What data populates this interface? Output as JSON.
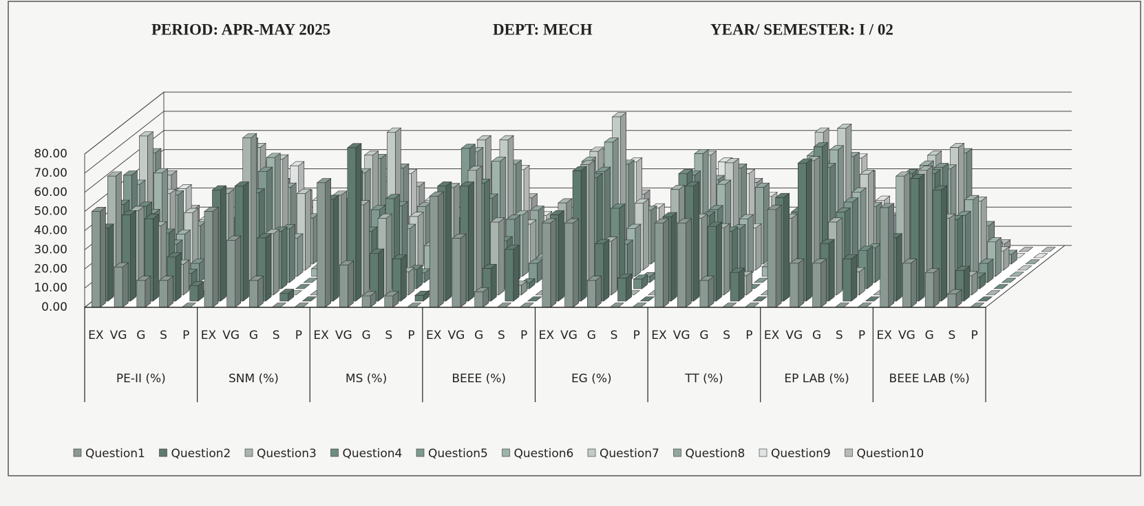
{
  "chart_data": {
    "type": "bar3d",
    "title": "PERIOD: APR-MAY 2025",
    "subtitle": "DEPT: MECH",
    "caption": "YEAR/ SEMESTER: I / 02",
    "groups": [
      {
        "name": "PE-II (%)",
        "categories": [
          "EX",
          "VG",
          "G",
          "S",
          "P"
        ]
      },
      {
        "name": "SNM (%)",
        "categories": [
          "EX",
          "VG",
          "G",
          "S",
          "P"
        ]
      },
      {
        "name": "MS (%)",
        "categories": [
          "EX",
          "VG",
          "G",
          "S",
          "P"
        ]
      },
      {
        "name": "BEEE (%)",
        "categories": [
          "EX",
          "VG",
          "G",
          "S",
          "P"
        ]
      },
      {
        "name": "EG (%)",
        "categories": [
          "EX",
          "VG",
          "G",
          "S",
          "P"
        ]
      },
      {
        "name": "TT (%)",
        "categories": [
          "EX",
          "VG",
          "G",
          "S",
          "P"
        ]
      },
      {
        "name": "EP LAB (%)",
        "categories": [
          "EX",
          "VG",
          "G",
          "S",
          "P"
        ]
      },
      {
        "name": "BEEE LAB (%)",
        "categories": [
          "EX",
          "VG",
          "G",
          "S",
          "P"
        ]
      }
    ],
    "series": [
      {
        "name": "Question1",
        "color": "#8a9a93",
        "values": [
          [
            50,
            21,
            14,
            14,
            0
          ],
          [
            50,
            35,
            14,
            0,
            0
          ],
          [
            65,
            22,
            6,
            6,
            0
          ],
          [
            58,
            36,
            8,
            0,
            0
          ],
          [
            44,
            44,
            14,
            0,
            0
          ],
          [
            44,
            44,
            14,
            0,
            0
          ],
          [
            51,
            23,
            23,
            0,
            0
          ],
          [
            52,
            23,
            18,
            7,
            0
          ]
        ]
      },
      {
        "name": "Question2",
        "color": "#5f7a6e",
        "values": [
          [
            38,
            45,
            43,
            23,
            8
          ],
          [
            58,
            60,
            33,
            4,
            0
          ],
          [
            53,
            80,
            25,
            22,
            3
          ],
          [
            60,
            60,
            17,
            27,
            0
          ],
          [
            45,
            68,
            30,
            12,
            0
          ],
          [
            44,
            60,
            39,
            15,
            0
          ],
          [
            54,
            72,
            30,
            22,
            0
          ],
          [
            33,
            64,
            58,
            16,
            0
          ]
        ]
      },
      {
        "name": "Question3",
        "color": "#a8b5ae",
        "values": [
          [
            62,
            44,
            36,
            16,
            0
          ],
          [
            53,
            82,
            32,
            0,
            0
          ],
          [
            52,
            47,
            40,
            12,
            0
          ],
          [
            56,
            65,
            38,
            5,
            0
          ],
          [
            48,
            68,
            28,
            0,
            0
          ],
          [
            55,
            40,
            35,
            10,
            0
          ],
          [
            40,
            70,
            38,
            12,
            0
          ],
          [
            62,
            65,
            40,
            10,
            0
          ]
        ]
      },
      {
        "name": "Question4",
        "color": "#6f8c80",
        "values": [
          [
            44,
            43,
            29,
            8,
            0
          ],
          [
            35,
            50,
            30,
            0,
            0
          ],
          [
            45,
            30,
            47,
            10,
            0
          ],
          [
            35,
            55,
            25,
            3,
            0
          ],
          [
            35,
            58,
            42,
            5,
            0
          ],
          [
            60,
            38,
            30,
            0,
            0
          ],
          [
            40,
            74,
            40,
            20,
            0
          ],
          [
            60,
            60,
            36,
            6,
            0
          ]
        ]
      },
      {
        "name": "Question5",
        "color": "#7f9990",
        "values": [
          [
            56,
            36,
            20,
            10,
            0
          ],
          [
            45,
            58,
            28,
            0,
            0
          ],
          [
            56,
            38,
            40,
            5,
            0
          ],
          [
            70,
            44,
            33,
            10,
            0
          ],
          [
            36,
            58,
            20,
            3,
            0
          ],
          [
            56,
            38,
            28,
            0,
            0
          ],
          [
            50,
            60,
            42,
            18,
            0
          ],
          [
            52,
            60,
            35,
            10,
            0
          ]
        ]
      },
      {
        "name": "Question6",
        "color": "#9fb3ab",
        "values": [
          [
            48,
            54,
            22,
            5,
            0
          ],
          [
            70,
            62,
            20,
            4,
            0
          ],
          [
            54,
            35,
            25,
            16,
            0
          ],
          [
            65,
            60,
            32,
            10,
            0
          ],
          [
            60,
            70,
            25,
            0,
            0
          ],
          [
            64,
            48,
            30,
            5,
            0
          ],
          [
            63,
            66,
            44,
            15,
            0
          ],
          [
            58,
            56,
            40,
            18,
            0
          ]
        ]
      },
      {
        "name": "Question7",
        "color": "#c2cbc6",
        "values": [
          [
            70,
            40,
            30,
            0,
            0
          ],
          [
            64,
            58,
            40,
            8,
            0
          ],
          [
            60,
            72,
            28,
            0,
            0
          ],
          [
            68,
            68,
            24,
            8,
            0
          ],
          [
            62,
            80,
            35,
            0,
            0
          ],
          [
            60,
            56,
            22,
            10,
            0
          ],
          [
            72,
            74,
            50,
            14,
            0
          ],
          [
            60,
            64,
            36,
            10,
            0
          ]
        ]
      },
      {
        "name": "Question8",
        "color": "#93a79f",
        "values": [
          [
            58,
            36,
            20,
            0,
            0
          ],
          [
            52,
            40,
            24,
            0,
            0
          ],
          [
            55,
            50,
            30,
            0,
            0
          ],
          [
            50,
            52,
            28,
            0,
            0
          ],
          [
            50,
            52,
            28,
            0,
            0
          ],
          [
            44,
            50,
            40,
            0,
            0
          ],
          [
            52,
            56,
            30,
            8,
            0
          ],
          [
            48,
            58,
            20,
            5,
            0
          ]
        ]
      },
      {
        "name": "Question9",
        "color": "#dfe3e1",
        "values": [
          [
            30,
            36,
            20,
            6,
            0
          ],
          [
            40,
            48,
            30,
            0,
            0
          ],
          [
            40,
            44,
            30,
            0,
            0
          ],
          [
            42,
            46,
            22,
            0,
            0
          ],
          [
            42,
            50,
            26,
            0,
            0
          ],
          [
            50,
            44,
            32,
            0,
            0
          ],
          [
            42,
            52,
            30,
            6,
            0
          ],
          [
            20,
            12,
            6,
            0,
            0
          ]
        ]
      },
      {
        "name": "Question10",
        "color": "#b7bcba",
        "values": [
          [
            40,
            22,
            14,
            0,
            0
          ],
          [
            36,
            30,
            10,
            0,
            0
          ],
          [
            30,
            34,
            12,
            0,
            0
          ],
          [
            36,
            28,
            10,
            0,
            0
          ],
          [
            36,
            30,
            12,
            0,
            0
          ],
          [
            30,
            36,
            14,
            0,
            0
          ],
          [
            36,
            40,
            18,
            0,
            0
          ],
          [
            10,
            8,
            4,
            0,
            0
          ]
        ]
      }
    ],
    "ylim": [
      0,
      80
    ],
    "yticks": [
      {
        "value": 0,
        "label": "0.00"
      },
      {
        "value": 10,
        "label": "10.00"
      },
      {
        "value": 20,
        "label": "20.00"
      },
      {
        "value": 30,
        "label": "30.00"
      },
      {
        "value": 40,
        "label": "40.00"
      },
      {
        "value": 50,
        "label": "50.00"
      },
      {
        "value": 60,
        "label": "60.00"
      },
      {
        "value": 70,
        "label": "70.00"
      },
      {
        "value": 80,
        "label": "80.00"
      }
    ],
    "grid": true,
    "legend": "bottom"
  }
}
